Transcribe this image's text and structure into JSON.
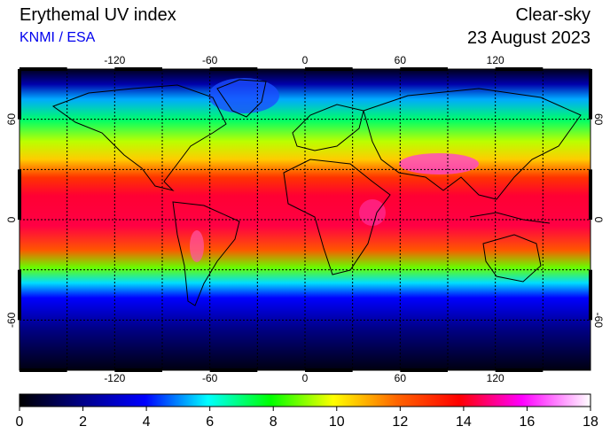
{
  "header": {
    "title": "Erythemal UV index",
    "source": "KNMI / ESA",
    "mode": "Clear-sky",
    "date": "23 August 2023"
  },
  "map": {
    "lon_ticks": [
      "-120",
      "-60",
      "0",
      "60",
      "120"
    ],
    "lat_ticks": [
      "60",
      "0",
      "-60"
    ],
    "lon_values": [
      -120,
      -60,
      0,
      60,
      120
    ],
    "lat_values": [
      60,
      0,
      -60
    ],
    "lon_range": [
      -180,
      180
    ],
    "lat_range": [
      -90,
      90
    ],
    "grid_lon": [
      -150,
      -120,
      -90,
      -60,
      -30,
      0,
      30,
      60,
      90,
      120,
      150
    ],
    "grid_lat": [
      60,
      30,
      0,
      -30,
      -60
    ],
    "colors": {
      "polar": "#000022",
      "low": "#0000ff",
      "mid": "#00ff00",
      "high": "#ff0000",
      "peak": "#ff00ff"
    }
  },
  "colorbar": {
    "min": 0,
    "max": 18,
    "ticks": [
      "0",
      "2",
      "4",
      "6",
      "8",
      "10",
      "12",
      "14",
      "16",
      "18"
    ],
    "tick_values": [
      0,
      2,
      4,
      6,
      8,
      10,
      12,
      14,
      16,
      18
    ]
  }
}
